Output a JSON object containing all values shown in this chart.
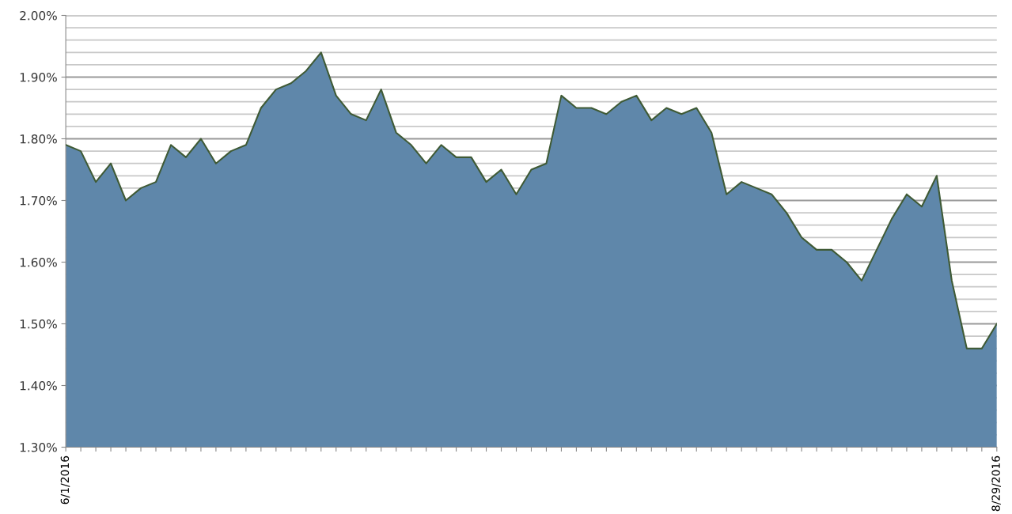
{
  "chart_data": {
    "type": "area",
    "categories": [
      "6/1/2016",
      null,
      null,
      null,
      null,
      null,
      null,
      null,
      null,
      null,
      null,
      null,
      null,
      null,
      null,
      null,
      null,
      null,
      null,
      null,
      null,
      null,
      null,
      null,
      null,
      null,
      null,
      null,
      null,
      null,
      null,
      null,
      null,
      null,
      null,
      null,
      null,
      null,
      null,
      null,
      null,
      null,
      null,
      null,
      null,
      null,
      null,
      null,
      null,
      null,
      null,
      null,
      null,
      null,
      null,
      null,
      null,
      null,
      null,
      null,
      null,
      null,
      "8/29/2016"
    ],
    "series": [
      {
        "color": "#5f87aa",
        "values": [
          1.79,
          1.78,
          1.73,
          1.76,
          1.7,
          1.72,
          1.73,
          1.79,
          1.77,
          1.8,
          1.76,
          1.78,
          1.79,
          1.85,
          1.88,
          1.89,
          1.91,
          1.94,
          1.87,
          1.84,
          1.83,
          1.88,
          1.81,
          1.79,
          1.76,
          1.79,
          1.77,
          1.77,
          1.73,
          1.75,
          1.71,
          1.75,
          1.76,
          1.87,
          1.85,
          1.85,
          1.84,
          1.86,
          1.87,
          1.83,
          1.85,
          1.84,
          1.85,
          1.81,
          1.71,
          1.73,
          1.72,
          1.71,
          1.68,
          1.64,
          1.62,
          1.62,
          1.6,
          1.57,
          1.62,
          1.67,
          1.71,
          1.69,
          1.74,
          1.57,
          1.46,
          1.46,
          1.5
        ]
      }
    ],
    "ylim": [
      1.3,
      2.0
    ],
    "yticks": [
      {
        "value": 1.3,
        "label": "1.30%"
      },
      {
        "value": 1.32,
        "label": null
      },
      {
        "value": 1.34,
        "label": null
      },
      {
        "value": 1.36,
        "label": null
      },
      {
        "value": 1.38,
        "label": null
      },
      {
        "value": 1.4,
        "label": "1.40%"
      },
      {
        "value": 1.42,
        "label": null
      },
      {
        "value": 1.44,
        "label": null
      },
      {
        "value": 1.46,
        "label": null
      },
      {
        "value": 1.48,
        "label": null
      },
      {
        "value": 1.5,
        "label": "1.50%"
      },
      {
        "value": 1.52,
        "label": null
      },
      {
        "value": 1.54,
        "label": null
      },
      {
        "value": 1.56,
        "label": null
      },
      {
        "value": 1.58,
        "label": null
      },
      {
        "value": 1.6,
        "label": "1.60%"
      },
      {
        "value": 1.62,
        "label": null
      },
      {
        "value": 1.64,
        "label": null
      },
      {
        "value": 1.66,
        "label": null
      },
      {
        "value": 1.68,
        "label": null
      },
      {
        "value": 1.7,
        "label": "1.70%"
      },
      {
        "value": 1.72,
        "label": null
      },
      {
        "value": 1.74,
        "label": null
      },
      {
        "value": 1.76,
        "label": null
      },
      {
        "value": 1.78,
        "label": null
      },
      {
        "value": 1.8,
        "label": "1.80%"
      },
      {
        "value": 1.82,
        "label": null
      },
      {
        "value": 1.84,
        "label": null
      },
      {
        "value": 1.86,
        "label": null
      },
      {
        "value": 1.88,
        "label": null
      },
      {
        "value": 1.9,
        "label": "1.90%"
      },
      {
        "value": 1.92,
        "label": null
      },
      {
        "value": 1.94,
        "label": null
      },
      {
        "value": 1.96,
        "label": null
      },
      {
        "value": 1.98,
        "label": null
      },
      {
        "value": 2.0,
        "label": "2.00%"
      }
    ],
    "grid": "y",
    "legend": false
  }
}
